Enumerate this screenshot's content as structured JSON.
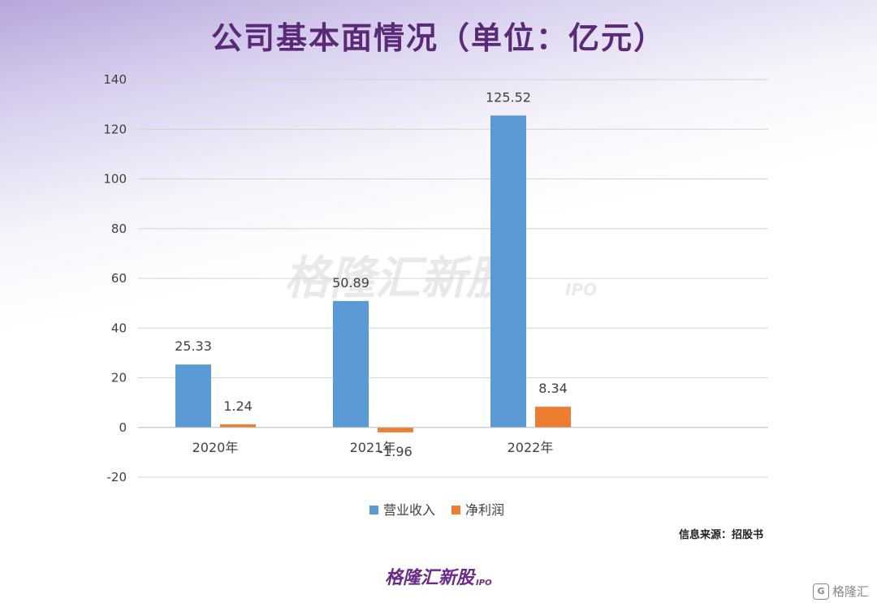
{
  "title": "公司基本面情况（单位：亿元）",
  "source": "信息来源：招股书",
  "brand": {
    "name": "格隆汇新股",
    "sub": "IPO"
  },
  "corner": {
    "text": "格隆汇"
  },
  "watermark": {
    "text": "格隆汇新股",
    "sub": "IPO"
  },
  "colors": {
    "revenue": "#5b9bd5",
    "profit": "#ed7d31",
    "title": "#5a2a78"
  },
  "chart_data": {
    "type": "bar",
    "categories": [
      "2020年",
      "2021年",
      "2022年"
    ],
    "series": [
      {
        "name": "营业收入",
        "values": [
          25.33,
          50.89,
          125.52
        ],
        "labels": [
          "25.33",
          "50.89",
          "125.52"
        ]
      },
      {
        "name": "净利润",
        "values": [
          1.24,
          -1.96,
          8.34
        ],
        "labels": [
          "1.24",
          "-1.96",
          "8.34"
        ]
      }
    ],
    "ylim": [
      -20,
      140
    ],
    "yticks": [
      -20,
      0,
      20,
      40,
      60,
      80,
      100,
      120,
      140
    ],
    "grid": true,
    "legend": "bottom-center"
  }
}
